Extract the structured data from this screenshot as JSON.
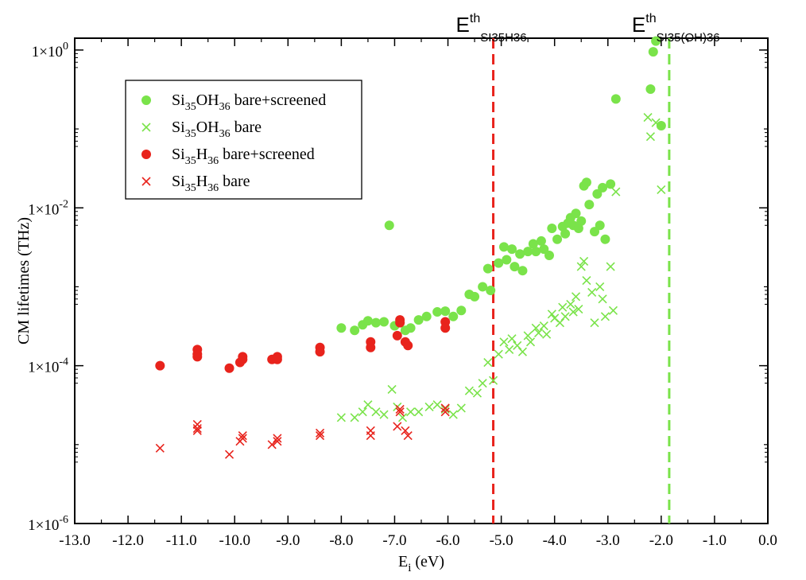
{
  "chart_data": {
    "type": "scatter",
    "title": "",
    "xlabel": "E",
    "xlabel_sub": "i",
    "xlabel_units": " (eV)",
    "ylabel": "CM lifetimes (THz)",
    "xlim": [
      -13.0,
      0.0
    ],
    "ylim": [
      1e-06,
      1.5
    ],
    "yscale": "log",
    "x_ticks": [
      "-13.0",
      "-12.0",
      "-11.0",
      "-10.0",
      "-9.0",
      "-8.0",
      "-7.0",
      "-6.0",
      "-5.0",
      "-4.0",
      "-3.0",
      "-2.0",
      "-1.0",
      "0.0"
    ],
    "y_ticks": [
      {
        "value": 1e-06,
        "base": "1×10",
        "exp": "-6"
      },
      {
        "value": 0.0001,
        "base": "1×10",
        "exp": "-4"
      },
      {
        "value": 0.01,
        "base": "1×10",
        "exp": "-2"
      },
      {
        "value": 1.0,
        "base": "1×10",
        "exp": "0"
      }
    ],
    "grid": false,
    "legend_position": "top-left",
    "thresholds": [
      {
        "x": -5.15,
        "color": "#e8231c",
        "label_main": "E",
        "label_sup": "th",
        "label_sub": "SI35H36"
      },
      {
        "x": -1.85,
        "color": "#7ae34a",
        "label_main": "E",
        "label_sup": "th",
        "label_sub": "SI35(OH)36"
      }
    ],
    "series": [
      {
        "name": "Si35OH36 bare+screened",
        "legend": {
          "a": "Si",
          "s1": "35",
          "b": "OH",
          "s2": "36",
          "c": " bare+screened"
        },
        "marker": "circle",
        "color": "#7ae34a",
        "points": [
          [
            -8.0,
            0.0003
          ],
          [
            -7.75,
            0.00028
          ],
          [
            -7.6,
            0.00033
          ],
          [
            -7.5,
            0.00037
          ],
          [
            -7.35,
            0.00035
          ],
          [
            -7.2,
            0.00036
          ],
          [
            -7.1,
            0.006
          ],
          [
            -7.0,
            0.00032
          ],
          [
            -6.9,
            0.00035
          ],
          [
            -6.8,
            0.00028
          ],
          [
            -6.7,
            0.0003
          ],
          [
            -6.55,
            0.00038
          ],
          [
            -6.4,
            0.00042
          ],
          [
            -6.2,
            0.00048
          ],
          [
            -6.05,
            0.00049
          ],
          [
            -5.9,
            0.00042
          ],
          [
            -5.75,
            0.0005
          ],
          [
            -5.6,
            0.0008
          ],
          [
            -5.5,
            0.00075
          ],
          [
            -5.35,
            0.001
          ],
          [
            -5.25,
            0.0017
          ],
          [
            -5.2,
            0.0009
          ],
          [
            -5.05,
            0.002
          ],
          [
            -4.95,
            0.0032
          ],
          [
            -4.9,
            0.0022
          ],
          [
            -4.8,
            0.003
          ],
          [
            -4.75,
            0.0018
          ],
          [
            -4.65,
            0.0026
          ],
          [
            -4.6,
            0.0016
          ],
          [
            -4.5,
            0.0028
          ],
          [
            -4.4,
            0.0035
          ],
          [
            -4.35,
            0.0028
          ],
          [
            -4.25,
            0.0038
          ],
          [
            -4.2,
            0.003
          ],
          [
            -4.1,
            0.0025
          ],
          [
            -4.05,
            0.0055
          ],
          [
            -3.95,
            0.004
          ],
          [
            -3.85,
            0.0058
          ],
          [
            -3.8,
            0.0047
          ],
          [
            -3.75,
            0.0064
          ],
          [
            -3.7,
            0.0075
          ],
          [
            -3.65,
            0.006
          ],
          [
            -3.6,
            0.0085
          ],
          [
            -3.55,
            0.0055
          ],
          [
            -3.5,
            0.0068
          ],
          [
            -3.45,
            0.019
          ],
          [
            -3.4,
            0.021
          ],
          [
            -3.35,
            0.011
          ],
          [
            -3.25,
            0.005
          ],
          [
            -3.2,
            0.015
          ],
          [
            -3.15,
            0.006
          ],
          [
            -3.1,
            0.018
          ],
          [
            -3.05,
            0.004
          ],
          [
            -2.95,
            0.02
          ],
          [
            -2.85,
            0.24
          ],
          [
            -2.2,
            0.32
          ],
          [
            -2.15,
            0.95
          ],
          [
            -2.1,
            1.3
          ],
          [
            -2.0,
            0.11
          ]
        ]
      },
      {
        "name": "Si35OH36 bare",
        "legend": {
          "a": "Si",
          "s1": "35",
          "b": "OH",
          "s2": "36",
          "c": " bare"
        },
        "marker": "x",
        "color": "#7ae34a",
        "points": [
          [
            -8.0,
            2.2e-05
          ],
          [
            -7.75,
            2.2e-05
          ],
          [
            -7.6,
            2.6e-05
          ],
          [
            -7.5,
            3.2e-05
          ],
          [
            -7.35,
            2.6e-05
          ],
          [
            -7.2,
            2.4e-05
          ],
          [
            -7.05,
            5e-05
          ],
          [
            -6.95,
            3e-05
          ],
          [
            -6.85,
            2.2e-05
          ],
          [
            -6.7,
            2.6e-05
          ],
          [
            -6.55,
            2.6e-05
          ],
          [
            -6.35,
            3e-05
          ],
          [
            -6.2,
            3.2e-05
          ],
          [
            -6.05,
            2.8e-05
          ],
          [
            -5.9,
            2.4e-05
          ],
          [
            -5.75,
            2.9e-05
          ],
          [
            -5.6,
            4.8e-05
          ],
          [
            -5.45,
            4.5e-05
          ],
          [
            -5.35,
            6e-05
          ],
          [
            -5.25,
            0.00011
          ],
          [
            -5.15,
            6.5e-05
          ],
          [
            -5.05,
            0.00014
          ],
          [
            -4.95,
            0.0002
          ],
          [
            -4.85,
            0.00016
          ],
          [
            -4.8,
            0.00022
          ],
          [
            -4.7,
            0.00018
          ],
          [
            -4.6,
            0.00015
          ],
          [
            -4.5,
            0.00024
          ],
          [
            -4.45,
            0.0002
          ],
          [
            -4.35,
            0.0003
          ],
          [
            -4.3,
            0.00026
          ],
          [
            -4.2,
            0.00032
          ],
          [
            -4.15,
            0.00025
          ],
          [
            -4.05,
            0.00045
          ],
          [
            -4.0,
            0.0004
          ],
          [
            -3.9,
            0.00035
          ],
          [
            -3.85,
            0.00055
          ],
          [
            -3.8,
            0.00042
          ],
          [
            -3.7,
            0.0006
          ],
          [
            -3.65,
            0.00048
          ],
          [
            -3.6,
            0.00075
          ],
          [
            -3.55,
            0.00052
          ],
          [
            -3.5,
            0.0018
          ],
          [
            -3.45,
            0.0021
          ],
          [
            -3.4,
            0.0012
          ],
          [
            -3.3,
            0.00085
          ],
          [
            -3.25,
            0.00035
          ],
          [
            -3.15,
            0.001
          ],
          [
            -3.1,
            0.0007
          ],
          [
            -3.05,
            0.00042
          ],
          [
            -2.95,
            0.0018
          ],
          [
            -2.9,
            0.0005
          ],
          [
            -2.85,
            0.016
          ],
          [
            -2.25,
            0.14
          ],
          [
            -2.2,
            0.08
          ],
          [
            -2.1,
            0.12
          ],
          [
            -2.0,
            0.017
          ]
        ]
      },
      {
        "name": "Si35H36 bare+screened",
        "legend": {
          "a": "Si",
          "s1": "35",
          "b": "H",
          "s2": "36",
          "c": " bare+screened"
        },
        "marker": "circle",
        "color": "#e8231c",
        "points": [
          [
            -11.4,
            0.0001
          ],
          [
            -10.7,
            0.00016
          ],
          [
            -10.7,
            0.00013
          ],
          [
            -10.7,
            0.00014
          ],
          [
            -10.1,
            9.3e-05
          ],
          [
            -9.9,
            0.00011
          ],
          [
            -9.85,
            0.00013
          ],
          [
            -9.85,
            0.00012
          ],
          [
            -9.3,
            0.00012
          ],
          [
            -9.2,
            0.00013
          ],
          [
            -9.2,
            0.00012
          ],
          [
            -8.4,
            0.00017
          ],
          [
            -8.4,
            0.00015
          ],
          [
            -7.45,
            0.0002
          ],
          [
            -7.45,
            0.00017
          ],
          [
            -6.95,
            0.00024
          ],
          [
            -6.9,
            0.00038
          ],
          [
            -6.9,
            0.00035
          ],
          [
            -6.8,
            0.0002
          ],
          [
            -6.75,
            0.00018
          ],
          [
            -6.05,
            0.00036
          ],
          [
            -6.05,
            0.0003
          ]
        ]
      },
      {
        "name": "Si35H36 bare",
        "legend": {
          "a": "Si",
          "s1": "35",
          "b": "H",
          "s2": "36",
          "c": "  bare"
        },
        "marker": "x",
        "color": "#e8231c",
        "points": [
          [
            -11.4,
            9e-06
          ],
          [
            -10.7,
            1.8e-05
          ],
          [
            -10.7,
            1.5e-05
          ],
          [
            -10.7,
            1.6e-05
          ],
          [
            -10.1,
            7.5e-06
          ],
          [
            -9.9,
            1.1e-05
          ],
          [
            -9.85,
            1.3e-05
          ],
          [
            -9.85,
            1.2e-05
          ],
          [
            -9.3,
            1e-05
          ],
          [
            -9.2,
            1.2e-05
          ],
          [
            -9.2,
            1.1e-05
          ],
          [
            -8.4,
            1.3e-05
          ],
          [
            -8.4,
            1.4e-05
          ],
          [
            -7.45,
            1.5e-05
          ],
          [
            -7.45,
            1.3e-05
          ],
          [
            -6.95,
            1.7e-05
          ],
          [
            -6.9,
            2.8e-05
          ],
          [
            -6.9,
            2.6e-05
          ],
          [
            -6.8,
            1.5e-05
          ],
          [
            -6.75,
            1.3e-05
          ],
          [
            -6.05,
            2.9e-05
          ],
          [
            -6.05,
            2.6e-05
          ]
        ]
      }
    ]
  }
}
